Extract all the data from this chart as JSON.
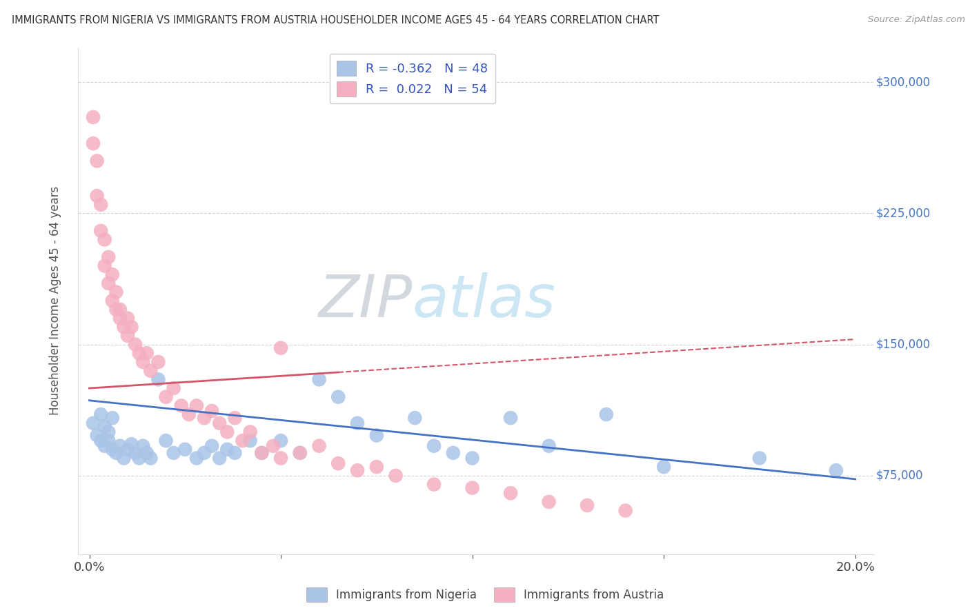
{
  "title": "IMMIGRANTS FROM NIGERIA VS IMMIGRANTS FROM AUSTRIA HOUSEHOLDER INCOME AGES 45 - 64 YEARS CORRELATION CHART",
  "source": "Source: ZipAtlas.com",
  "ylabel": "Householder Income Ages 45 - 64 years",
  "watermark_zip": "ZIP",
  "watermark_atlas": "atlas",
  "legend": {
    "nigeria": {
      "R": -0.362,
      "N": 48,
      "color": "#aac4e8",
      "line_color": "#4472c4"
    },
    "austria": {
      "R": 0.022,
      "N": 54,
      "color": "#f4afc0",
      "line_color": "#d4546a"
    }
  },
  "nigeria_scatter_x": [
    0.001,
    0.002,
    0.003,
    0.003,
    0.004,
    0.004,
    0.005,
    0.005,
    0.006,
    0.006,
    0.007,
    0.008,
    0.009,
    0.01,
    0.011,
    0.012,
    0.013,
    0.014,
    0.015,
    0.016,
    0.018,
    0.02,
    0.022,
    0.025,
    0.028,
    0.03,
    0.032,
    0.034,
    0.036,
    0.038,
    0.042,
    0.045,
    0.05,
    0.055,
    0.06,
    0.065,
    0.07,
    0.075,
    0.085,
    0.09,
    0.095,
    0.1,
    0.11,
    0.12,
    0.135,
    0.15,
    0.175,
    0.195
  ],
  "nigeria_scatter_y": [
    105000,
    98000,
    110000,
    95000,
    103000,
    92000,
    100000,
    95000,
    108000,
    90000,
    88000,
    92000,
    85000,
    90000,
    93000,
    88000,
    85000,
    92000,
    88000,
    85000,
    130000,
    95000,
    88000,
    90000,
    85000,
    88000,
    92000,
    85000,
    90000,
    88000,
    95000,
    88000,
    95000,
    88000,
    130000,
    120000,
    105000,
    98000,
    108000,
    92000,
    88000,
    85000,
    108000,
    92000,
    110000,
    80000,
    85000,
    78000
  ],
  "austria_scatter_x": [
    0.001,
    0.001,
    0.002,
    0.002,
    0.003,
    0.003,
    0.004,
    0.004,
    0.005,
    0.005,
    0.006,
    0.006,
    0.007,
    0.007,
    0.008,
    0.008,
    0.009,
    0.01,
    0.01,
    0.011,
    0.012,
    0.013,
    0.014,
    0.015,
    0.016,
    0.018,
    0.02,
    0.022,
    0.024,
    0.026,
    0.028,
    0.03,
    0.032,
    0.034,
    0.036,
    0.038,
    0.04,
    0.042,
    0.045,
    0.048,
    0.05,
    0.055,
    0.06,
    0.065,
    0.07,
    0.075,
    0.08,
    0.09,
    0.1,
    0.11,
    0.12,
    0.13,
    0.14,
    0.05
  ],
  "austria_scatter_y": [
    280000,
    265000,
    255000,
    235000,
    230000,
    215000,
    210000,
    195000,
    185000,
    200000,
    175000,
    190000,
    170000,
    180000,
    165000,
    170000,
    160000,
    165000,
    155000,
    160000,
    150000,
    145000,
    140000,
    145000,
    135000,
    140000,
    120000,
    125000,
    115000,
    110000,
    115000,
    108000,
    112000,
    105000,
    100000,
    108000,
    95000,
    100000,
    88000,
    92000,
    85000,
    88000,
    92000,
    82000,
    78000,
    80000,
    75000,
    70000,
    68000,
    65000,
    60000,
    58000,
    55000,
    148000
  ],
  "y_ticks": [
    75000,
    150000,
    225000,
    300000
  ],
  "y_tick_labels": [
    "$75,000",
    "$150,000",
    "$225,000",
    "$300,000"
  ],
  "ylim_min": 30000,
  "ylim_max": 320000,
  "xlim_min": -0.003,
  "xlim_max": 0.205,
  "background_color": "#ffffff",
  "grid_color": "#c8c8c8",
  "title_color": "#333333",
  "right_label_color": "#4472c4",
  "source_color": "#999999"
}
